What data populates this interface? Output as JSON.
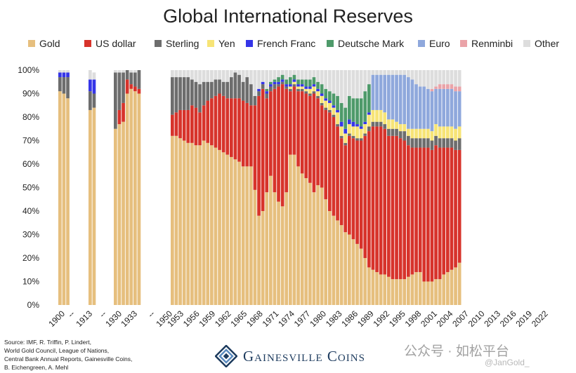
{
  "chart_data": {
    "type": "bar",
    "stacked": true,
    "title": "Global International Reserves",
    "ylim": [
      0,
      100
    ],
    "yticks": [
      "0%",
      "10%",
      "20%",
      "30%",
      "40%",
      "50%",
      "60%",
      "70%",
      "80%",
      "90%",
      "100%"
    ],
    "grid": false,
    "legend_position": "top",
    "series": [
      {
        "name": "Gold",
        "color": "#e6bf7e"
      },
      {
        "name": "US dollar",
        "color": "#d7332b"
      },
      {
        "name": "Sterling",
        "color": "#6d6d6d"
      },
      {
        "name": "Yen",
        "color": "#f7e476"
      },
      {
        "name": "French Franc",
        "color": "#3535e8"
      },
      {
        "name": "Deutsche Mark",
        "color": "#4e9a6a"
      },
      {
        "name": "Euro",
        "color": "#8fa8dc"
      },
      {
        "name": "Renminbi",
        "color": "#eaa3a8"
      },
      {
        "name": "Other",
        "color": "#dddddd"
      }
    ],
    "xtick_labels": [
      "1900",
      "--",
      "1913",
      "--",
      "1930",
      "1933",
      "--",
      "1950",
      "1953",
      "1956",
      "1959",
      "1962",
      "1965",
      "1968",
      "1971",
      "1974",
      "1977",
      "1980",
      "1983",
      "1986",
      "1989",
      "1992",
      "1995",
      "1998",
      "2001",
      "2004",
      "2007",
      "2010",
      "2013",
      "2016",
      "2019",
      "2022"
    ],
    "groups": [
      {
        "label": "1900",
        "start": 1899,
        "bars": [
          [
            91,
            0,
            6,
            0,
            2,
            0,
            0,
            0,
            1
          ],
          [
            90,
            0,
            7,
            0,
            2,
            0,
            0,
            0,
            1
          ],
          [
            88,
            0,
            9,
            0,
            2,
            0,
            0,
            0,
            1
          ]
        ]
      },
      {
        "label": "1913",
        "start": 1912,
        "bars": [
          [
            83,
            0,
            8,
            0,
            5,
            0,
            0,
            0,
            4
          ],
          [
            84,
            0,
            6,
            0,
            6,
            0,
            0,
            0,
            3
          ]
        ]
      },
      {
        "label": "1930-1933",
        "start": 1928,
        "bars": [
          [
            75,
            0,
            24,
            0,
            0,
            0,
            0,
            0,
            1
          ],
          [
            77,
            6,
            16,
            0,
            0,
            0,
            0,
            0,
            1
          ],
          [
            78,
            8,
            13,
            0,
            0,
            0,
            0,
            0,
            1
          ],
          [
            90,
            6,
            4,
            0,
            0,
            0,
            0,
            0,
            0
          ],
          [
            92,
            2,
            5,
            0,
            0,
            0,
            0,
            0,
            1
          ],
          [
            91,
            2,
            6,
            0,
            0,
            0,
            0,
            0,
            1
          ],
          [
            90,
            2,
            8,
            0,
            0,
            0,
            0,
            0,
            0
          ]
        ]
      },
      {
        "label": "1950-2023",
        "start": 1950,
        "bars": [
          [
            72,
            9,
            16,
            0,
            0,
            0,
            0,
            0,
            3
          ],
          [
            72,
            10,
            15,
            0,
            0,
            0,
            0,
            0,
            3
          ],
          [
            71,
            12,
            14,
            0,
            0,
            0,
            0,
            0,
            3
          ],
          [
            70,
            13,
            14,
            0,
            0,
            0,
            0,
            0,
            3
          ],
          [
            69,
            14,
            14,
            0,
            0,
            0,
            0,
            0,
            3
          ],
          [
            69,
            16,
            11,
            0,
            0,
            0,
            0,
            0,
            4
          ],
          [
            68,
            16,
            11,
            0,
            0,
            0,
            0,
            0,
            5
          ],
          [
            68,
            14,
            12,
            0,
            0,
            0,
            0,
            0,
            6
          ],
          [
            70,
            15,
            10,
            0,
            0,
            0,
            0,
            0,
            5
          ],
          [
            69,
            18,
            8,
            0,
            0,
            0,
            0,
            0,
            5
          ],
          [
            68,
            20,
            7,
            0,
            0,
            0,
            0,
            0,
            5
          ],
          [
            67,
            22,
            7,
            0,
            0,
            0,
            0,
            0,
            4
          ],
          [
            66,
            24,
            6,
            0,
            0,
            0,
            0,
            0,
            4
          ],
          [
            65,
            24,
            6,
            0,
            0,
            0,
            0,
            0,
            5
          ],
          [
            64,
            24,
            7,
            0,
            0,
            0,
            0,
            0,
            5
          ],
          [
            63,
            25,
            9,
            0,
            0,
            0,
            0,
            0,
            3
          ],
          [
            62,
            26,
            11,
            0,
            0,
            0,
            0,
            0,
            1
          ],
          [
            61,
            27,
            10,
            0,
            0,
            0,
            0,
            0,
            2
          ],
          [
            59,
            28,
            8,
            0,
            0,
            0,
            0,
            0,
            5
          ],
          [
            59,
            27,
            11,
            0,
            0,
            0,
            0,
            0,
            3
          ],
          [
            59,
            26,
            9,
            0,
            0,
            0,
            0,
            0,
            6
          ],
          [
            49,
            36,
            4,
            0,
            0,
            0,
            0,
            0,
            11
          ],
          [
            38,
            51,
            2,
            0,
            1,
            0,
            0,
            0,
            8
          ],
          [
            40,
            52,
            2,
            0,
            1,
            0,
            0,
            0,
            5
          ],
          [
            48,
            40,
            2,
            0,
            1,
            1,
            0,
            0,
            8
          ],
          [
            55,
            36,
            2,
            0,
            1,
            1,
            0,
            0,
            5
          ],
          [
            48,
            44,
            2,
            0,
            1,
            1,
            0,
            0,
            4
          ],
          [
            44,
            49,
            1,
            0,
            1,
            2,
            0,
            0,
            3
          ],
          [
            42,
            52,
            1,
            0,
            1,
            2,
            0,
            0,
            2
          ],
          [
            48,
            44,
            1,
            0,
            1,
            2,
            0,
            0,
            4
          ],
          [
            64,
            27,
            1,
            1,
            1,
            3,
            0,
            0,
            3
          ],
          [
            64,
            29,
            1,
            1,
            1,
            2,
            0,
            0,
            2
          ],
          [
            59,
            32,
            1,
            1,
            1,
            2,
            0,
            0,
            4
          ],
          [
            56,
            35,
            1,
            1,
            1,
            2,
            0,
            0,
            4
          ],
          [
            54,
            36,
            1,
            1,
            1,
            3,
            0,
            0,
            4
          ],
          [
            52,
            37,
            1,
            2,
            1,
            3,
            0,
            0,
            4
          ],
          [
            48,
            42,
            1,
            2,
            1,
            3,
            0,
            0,
            3
          ],
          [
            51,
            37,
            1,
            2,
            1,
            3,
            0,
            0,
            5
          ],
          [
            50,
            35,
            1,
            3,
            1,
            4,
            0,
            0,
            6
          ],
          [
            45,
            38,
            1,
            3,
            1,
            4,
            0,
            0,
            8
          ],
          [
            40,
            42,
            1,
            3,
            1,
            4,
            0,
            0,
            9
          ],
          [
            38,
            42,
            1,
            3,
            1,
            5,
            0,
            0,
            10
          ],
          [
            36,
            40,
            1,
            5,
            1,
            6,
            0,
            0,
            11
          ],
          [
            34,
            37,
            1,
            4,
            2,
            8,
            0,
            0,
            14
          ],
          [
            31,
            37,
            1,
            4,
            2,
            9,
            0,
            0,
            16
          ],
          [
            30,
            42,
            1,
            4,
            2,
            10,
            0,
            0,
            11
          ],
          [
            28,
            43,
            1,
            4,
            2,
            10,
            0,
            0,
            12
          ],
          [
            26,
            44,
            1,
            5,
            1,
            11,
            0,
            0,
            12
          ],
          [
            24,
            46,
            1,
            4,
            1,
            12,
            0,
            0,
            12
          ],
          [
            20,
            52,
            1,
            4,
            1,
            13,
            0,
            0,
            9
          ],
          [
            16,
            58,
            2,
            5,
            1,
            12,
            0,
            0,
            6
          ],
          [
            15,
            61,
            2,
            5,
            0,
            0,
            15,
            0,
            2
          ],
          [
            14,
            62,
            2,
            5,
            0,
            0,
            15,
            0,
            2
          ],
          [
            13,
            63,
            2,
            5,
            0,
            0,
            15,
            0,
            2
          ],
          [
            13,
            62,
            2,
            5,
            0,
            0,
            16,
            0,
            2
          ],
          [
            12,
            60,
            3,
            4,
            0,
            0,
            19,
            0,
            2
          ],
          [
            11,
            61,
            3,
            4,
            0,
            0,
            19,
            0,
            2
          ],
          [
            11,
            61,
            3,
            3,
            0,
            0,
            20,
            0,
            2
          ],
          [
            11,
            60,
            3,
            3,
            0,
            0,
            21,
            0,
            2
          ],
          [
            11,
            59,
            4,
            3,
            0,
            0,
            21,
            0,
            2
          ],
          [
            12,
            56,
            4,
            3,
            0,
            0,
            22,
            0,
            3
          ],
          [
            13,
            54,
            4,
            4,
            0,
            0,
            21,
            0,
            4
          ],
          [
            14,
            53,
            4,
            4,
            0,
            0,
            19,
            0,
            6
          ],
          [
            14,
            53,
            4,
            4,
            0,
            0,
            18,
            0,
            7
          ],
          [
            10,
            57,
            4,
            4,
            0,
            0,
            18,
            0,
            7
          ],
          [
            10,
            57,
            4,
            4,
            0,
            0,
            17,
            0,
            8
          ],
          [
            10,
            56,
            4,
            4,
            0,
            0,
            17,
            1,
            8
          ],
          [
            11,
            57,
            4,
            5,
            0,
            0,
            15,
            1,
            7
          ],
          [
            11,
            56,
            4,
            5,
            0,
            0,
            16,
            2,
            6
          ],
          [
            13,
            54,
            4,
            5,
            0,
            0,
            16,
            2,
            6
          ],
          [
            14,
            53,
            4,
            5,
            0,
            0,
            16,
            2,
            6
          ],
          [
            15,
            52,
            4,
            5,
            0,
            0,
            16,
            2,
            6
          ],
          [
            16,
            50,
            4,
            5,
            0,
            0,
            16,
            2,
            7
          ],
          [
            18,
            48,
            5,
            5,
            0,
            0,
            15,
            2,
            7
          ]
        ]
      }
    ]
  },
  "footer": {
    "source_lines": [
      "Source: IMF, R. Triffin, P. Lindert,",
      "World Gold Council, League of Nations,",
      "Central Bank Annual Reports, Gainesville Coins,",
      "B. Eichengreen, A. Mehl"
    ],
    "brand": "Gainesville Coins",
    "watermark": "公众号 · 如松平台",
    "handle": "@JanGold_"
  }
}
